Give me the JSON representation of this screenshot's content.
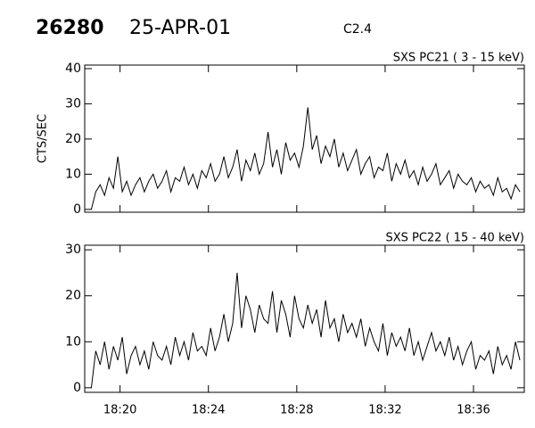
{
  "header": {
    "event": "26280",
    "date": "25-APR-01",
    "class": "C2.4"
  },
  "chart_data": [
    {
      "type": "line",
      "title": "SXS PC21  (  3 - 15 keV)",
      "y_label": "CTS/SEC",
      "xlim": [
        1098.4,
        1118.3
      ],
      "xticks": [
        1100,
        1104,
        1108,
        1112,
        1116
      ],
      "ylim": [
        -0.8,
        41
      ],
      "yticks": [
        0,
        10,
        20,
        30,
        40
      ],
      "series": [
        {
          "color": "#000000",
          "x": [
            1098.7,
            1098.9,
            1099.1,
            1099.3,
            1099.5,
            1099.7,
            1099.9,
            1100.1,
            1100.3,
            1100.5,
            1100.7,
            1100.9,
            1101.1,
            1101.3,
            1101.5,
            1101.7,
            1101.9,
            1102.1,
            1102.3,
            1102.5,
            1102.7,
            1102.9,
            1103.1,
            1103.3,
            1103.5,
            1103.7,
            1103.9,
            1104.1,
            1104.3,
            1104.5,
            1104.7,
            1104.9,
            1105.1,
            1105.3,
            1105.5,
            1105.7,
            1105.9,
            1106.1,
            1106.3,
            1106.5,
            1106.7,
            1106.9,
            1107.1,
            1107.3,
            1107.5,
            1107.7,
            1107.9,
            1108.1,
            1108.3,
            1108.5,
            1108.7,
            1108.9,
            1109.1,
            1109.3,
            1109.5,
            1109.7,
            1109.9,
            1110.1,
            1110.3,
            1110.5,
            1110.7,
            1110.9,
            1111.1,
            1111.3,
            1111.5,
            1111.7,
            1111.9,
            1112.1,
            1112.3,
            1112.5,
            1112.7,
            1112.9,
            1113.1,
            1113.3,
            1113.5,
            1113.7,
            1113.9,
            1114.1,
            1114.3,
            1114.5,
            1114.7,
            1114.9,
            1115.1,
            1115.3,
            1115.5,
            1115.7,
            1115.9,
            1116.1,
            1116.3,
            1116.5,
            1116.7,
            1116.9,
            1117.1,
            1117.3,
            1117.5,
            1117.7,
            1117.9,
            1118.1
          ],
          "values": [
            0,
            5,
            7,
            4,
            9,
            6,
            15,
            5,
            8,
            4,
            7,
            9,
            5,
            8,
            10,
            6,
            8,
            11,
            5,
            9,
            8,
            12,
            7,
            10,
            6,
            11,
            9,
            13,
            8,
            10,
            15,
            9,
            12,
            17,
            8,
            14,
            11,
            16,
            10,
            13,
            22,
            12,
            17,
            10,
            19,
            14,
            16,
            12,
            18,
            29,
            17,
            21,
            13,
            18,
            15,
            20,
            12,
            16,
            11,
            14,
            17,
            10,
            13,
            15,
            9,
            12,
            11,
            16,
            8,
            13,
            10,
            14,
            9,
            11,
            7,
            12,
            8,
            10,
            13,
            7,
            9,
            11,
            6,
            10,
            8,
            7,
            9,
            5,
            8,
            6,
            7,
            4,
            9,
            5,
            6,
            3,
            7,
            5
          ]
        }
      ]
    },
    {
      "type": "line",
      "title": "SXS PC22  ( 15 - 40 keV)",
      "xlim": [
        1098.4,
        1118.3
      ],
      "xticks": [
        {
          "value": 1100,
          "label": "18:20"
        },
        {
          "value": 1104,
          "label": "18:24"
        },
        {
          "value": 1108,
          "label": "18:28"
        },
        {
          "value": 1112,
          "label": "18:32"
        },
        {
          "value": 1116,
          "label": "18:36"
        }
      ],
      "ylim": [
        -1,
        31
      ],
      "yticks": [
        0,
        10,
        20,
        30
      ],
      "series": [
        {
          "color": "#000000",
          "x": [
            1098.7,
            1098.9,
            1099.1,
            1099.3,
            1099.5,
            1099.7,
            1099.9,
            1100.1,
            1100.3,
            1100.5,
            1100.7,
            1100.9,
            1101.1,
            1101.3,
            1101.5,
            1101.7,
            1101.9,
            1102.1,
            1102.3,
            1102.5,
            1102.7,
            1102.9,
            1103.1,
            1103.3,
            1103.5,
            1103.7,
            1103.9,
            1104.1,
            1104.3,
            1104.5,
            1104.7,
            1104.9,
            1105.1,
            1105.3,
            1105.5,
            1105.7,
            1105.9,
            1106.1,
            1106.3,
            1106.5,
            1106.7,
            1106.9,
            1107.1,
            1107.3,
            1107.5,
            1107.7,
            1107.9,
            1108.1,
            1108.3,
            1108.5,
            1108.7,
            1108.9,
            1109.1,
            1109.3,
            1109.5,
            1109.7,
            1109.9,
            1110.1,
            1110.3,
            1110.5,
            1110.7,
            1110.9,
            1111.1,
            1111.3,
            1111.5,
            1111.7,
            1111.9,
            1112.1,
            1112.3,
            1112.5,
            1112.7,
            1112.9,
            1113.1,
            1113.3,
            1113.5,
            1113.7,
            1113.9,
            1114.1,
            1114.3,
            1114.5,
            1114.7,
            1114.9,
            1115.1,
            1115.3,
            1115.5,
            1115.7,
            1115.9,
            1116.1,
            1116.3,
            1116.5,
            1116.7,
            1116.9,
            1117.1,
            1117.3,
            1117.5,
            1117.7,
            1117.9,
            1118.1
          ],
          "values": [
            0,
            8,
            5,
            10,
            4,
            9,
            6,
            11,
            3,
            7,
            9,
            5,
            8,
            4,
            10,
            7,
            6,
            9,
            5,
            11,
            7,
            10,
            6,
            12,
            8,
            9,
            7,
            13,
            8,
            11,
            16,
            10,
            14,
            25,
            13,
            20,
            17,
            12,
            18,
            15,
            14,
            21,
            12,
            19,
            16,
            11,
            20,
            15,
            13,
            18,
            14,
            17,
            11,
            19,
            13,
            15,
            10,
            16,
            12,
            14,
            11,
            15,
            9,
            13,
            10,
            8,
            14,
            7,
            12,
            9,
            11,
            8,
            13,
            7,
            10,
            6,
            9,
            12,
            8,
            10,
            7,
            11,
            6,
            9,
            5,
            8,
            10,
            4,
            7,
            6,
            8,
            3,
            9,
            5,
            7,
            4,
            10,
            6
          ]
        }
      ]
    }
  ]
}
